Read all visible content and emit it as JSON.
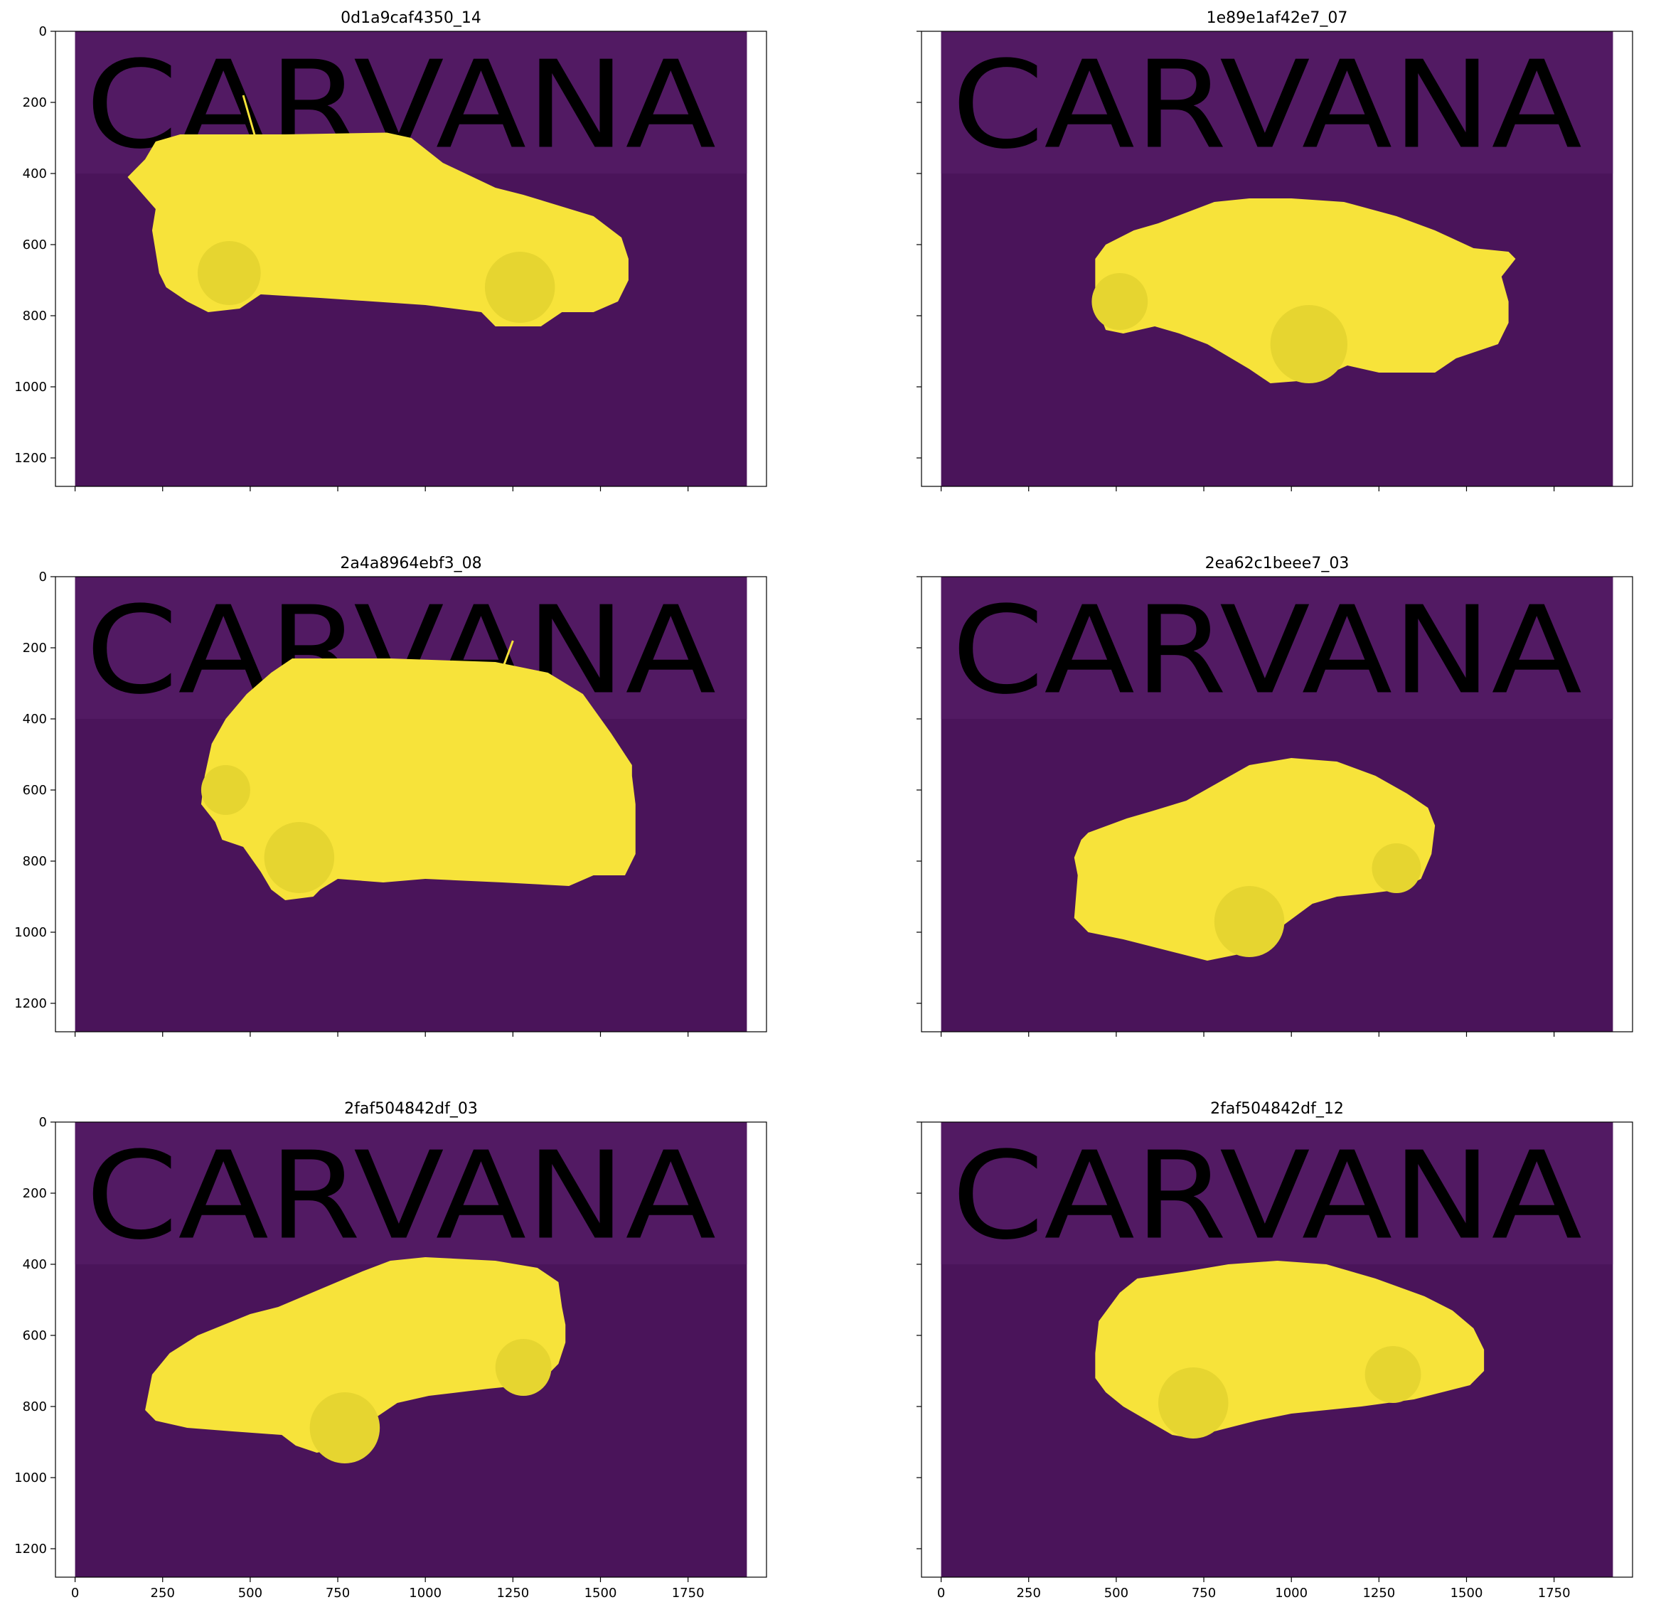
{
  "figure": {
    "background": "#ffffff",
    "colors": {
      "mask_background": "#4a145a",
      "mask_background_upper": "#521a63",
      "watermark": "#431050",
      "car": "#f7e33a",
      "car_shade": "#e6d530"
    },
    "watermark_text": "CARVANA"
  },
  "axes": {
    "x_ticks": [
      "0",
      "250",
      "500",
      "750",
      "1000",
      "1250",
      "1500",
      "1750"
    ],
    "y_ticks": [
      "0",
      "200",
      "400",
      "600",
      "800",
      "1000",
      "1200"
    ]
  },
  "panels": [
    {
      "title": "0d1a9caf4350_14",
      "car": "suv-side",
      "show_y_labels": true,
      "show_x_labels": false
    },
    {
      "title": "1e89e1af42e7_07",
      "car": "coupe-rear",
      "show_y_labels": false,
      "show_x_labels": false
    },
    {
      "title": "2a4a8964ebf3_08",
      "car": "suv-rear",
      "show_y_labels": true,
      "show_x_labels": false
    },
    {
      "title": "2ea62c1beee7_03",
      "car": "convertible-front",
      "show_y_labels": false,
      "show_x_labels": false
    },
    {
      "title": "2faf504842df_03",
      "car": "hatch-front",
      "show_y_labels": true,
      "show_x_labels": true
    },
    {
      "title": "2faf504842df_12",
      "car": "hatch-rear",
      "show_y_labels": false,
      "show_x_labels": true
    }
  ]
}
